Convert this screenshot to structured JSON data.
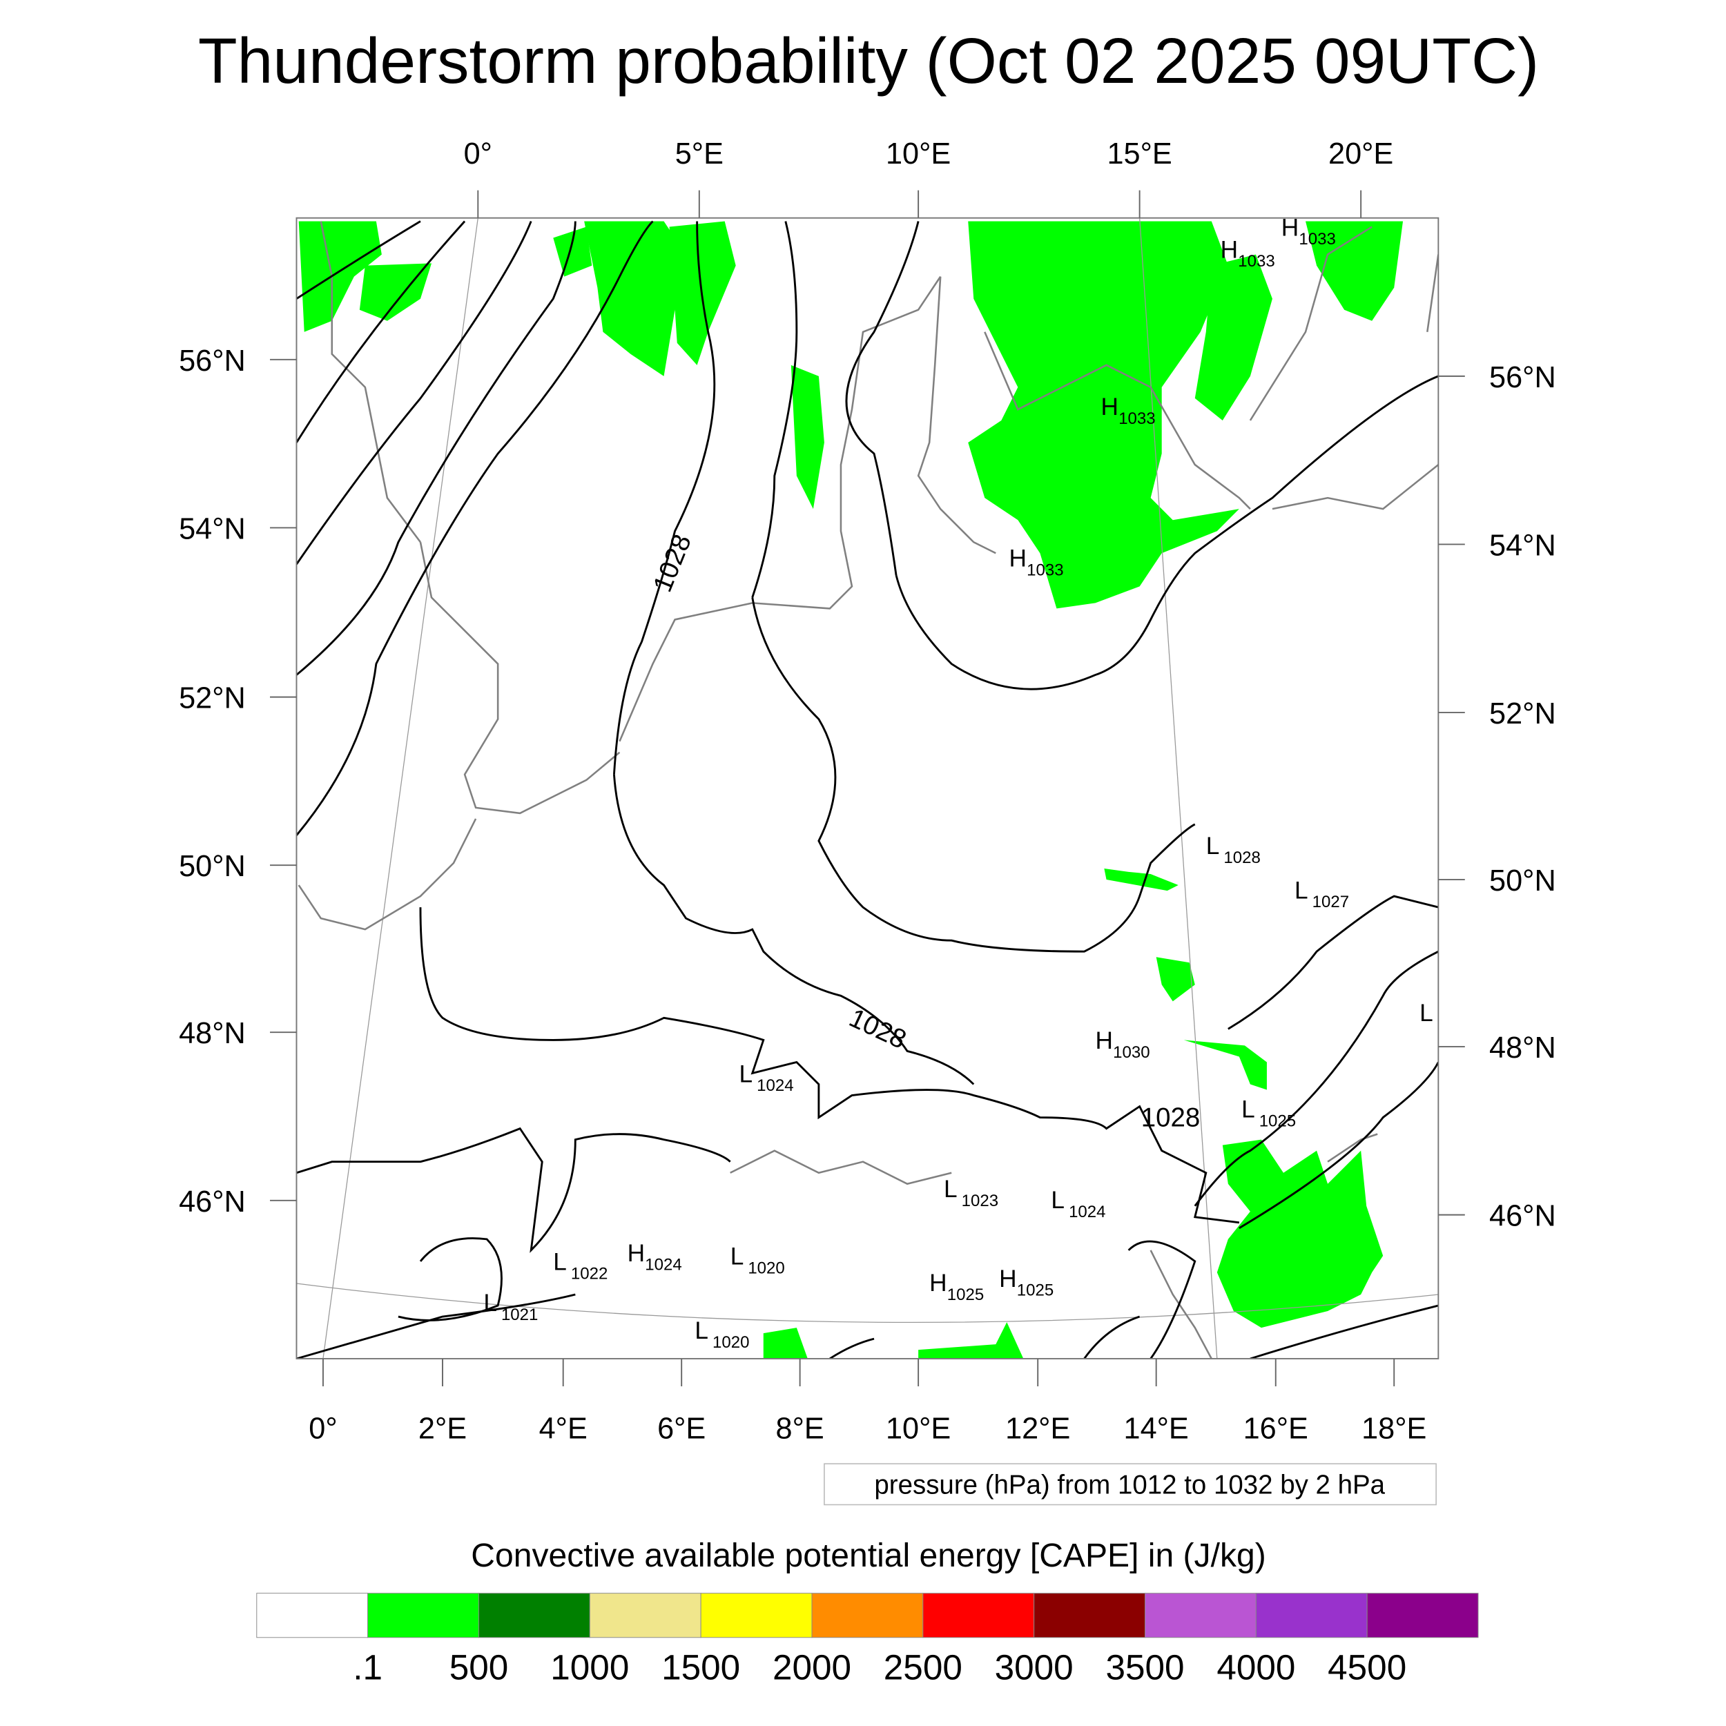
{
  "chart_data": {
    "type": "heatmap",
    "title": "Thunderstorm probability (Oct 02 2025 09UTC)",
    "top_lon_labels": [
      "0°",
      "5°E",
      "10°E",
      "15°E",
      "20°E"
    ],
    "bottom_lon_labels": [
      "0°",
      "2°E",
      "4°E",
      "6°E",
      "8°E",
      "10°E",
      "12°E",
      "14°E",
      "16°E",
      "18°E"
    ],
    "left_lat_labels": [
      "56°N",
      "54°N",
      "52°N",
      "50°N",
      "48°N",
      "46°N"
    ],
    "right_lat_labels": [
      "56°N",
      "54°N",
      "52°N",
      "50°N",
      "48°N",
      "46°N"
    ],
    "contour_info": "pressure (hPa) from 1012 to 1032 by 2 hPa",
    "contour_labels": [
      "1028",
      "1028",
      "1028"
    ],
    "pressure_centers": [
      {
        "type": "H",
        "value": "1033"
      },
      {
        "type": "H",
        "value": "1033"
      },
      {
        "type": "H",
        "value": "1033"
      },
      {
        "type": "H",
        "value": "1033"
      },
      {
        "type": "L",
        "value": "1028"
      },
      {
        "type": "L",
        "value": "1027"
      },
      {
        "type": "H",
        "value": "1030"
      },
      {
        "type": "L",
        "value": "1024"
      },
      {
        "type": "L",
        "value": "1025"
      },
      {
        "type": "L",
        "value": ""
      },
      {
        "type": "L",
        "value": "1023"
      },
      {
        "type": "L",
        "value": "1024"
      },
      {
        "type": "L",
        "value": "1022"
      },
      {
        "type": "H",
        "value": "1024"
      },
      {
        "type": "L",
        "value": "1020"
      },
      {
        "type": "H",
        "value": "1025"
      },
      {
        "type": "H",
        "value": "1025"
      },
      {
        "type": "L",
        "value": "1021"
      },
      {
        "type": "L",
        "value": "1020"
      }
    ],
    "colorbar": {
      "title": "Convective available potential energy [CAPE] in (J/kg)",
      "labels": [
        ".1",
        "500",
        "1000",
        "1500",
        "2000",
        "2500",
        "3000",
        "3500",
        "4000",
        "4500"
      ],
      "colors": [
        "#ffffff",
        "#00ff00",
        "#008000",
        "#f0e68c",
        "#ffff00",
        "#ff8c00",
        "#ff0000",
        "#8b0000",
        "#ba55d3",
        "#9932cc",
        "#8b008b"
      ]
    }
  }
}
